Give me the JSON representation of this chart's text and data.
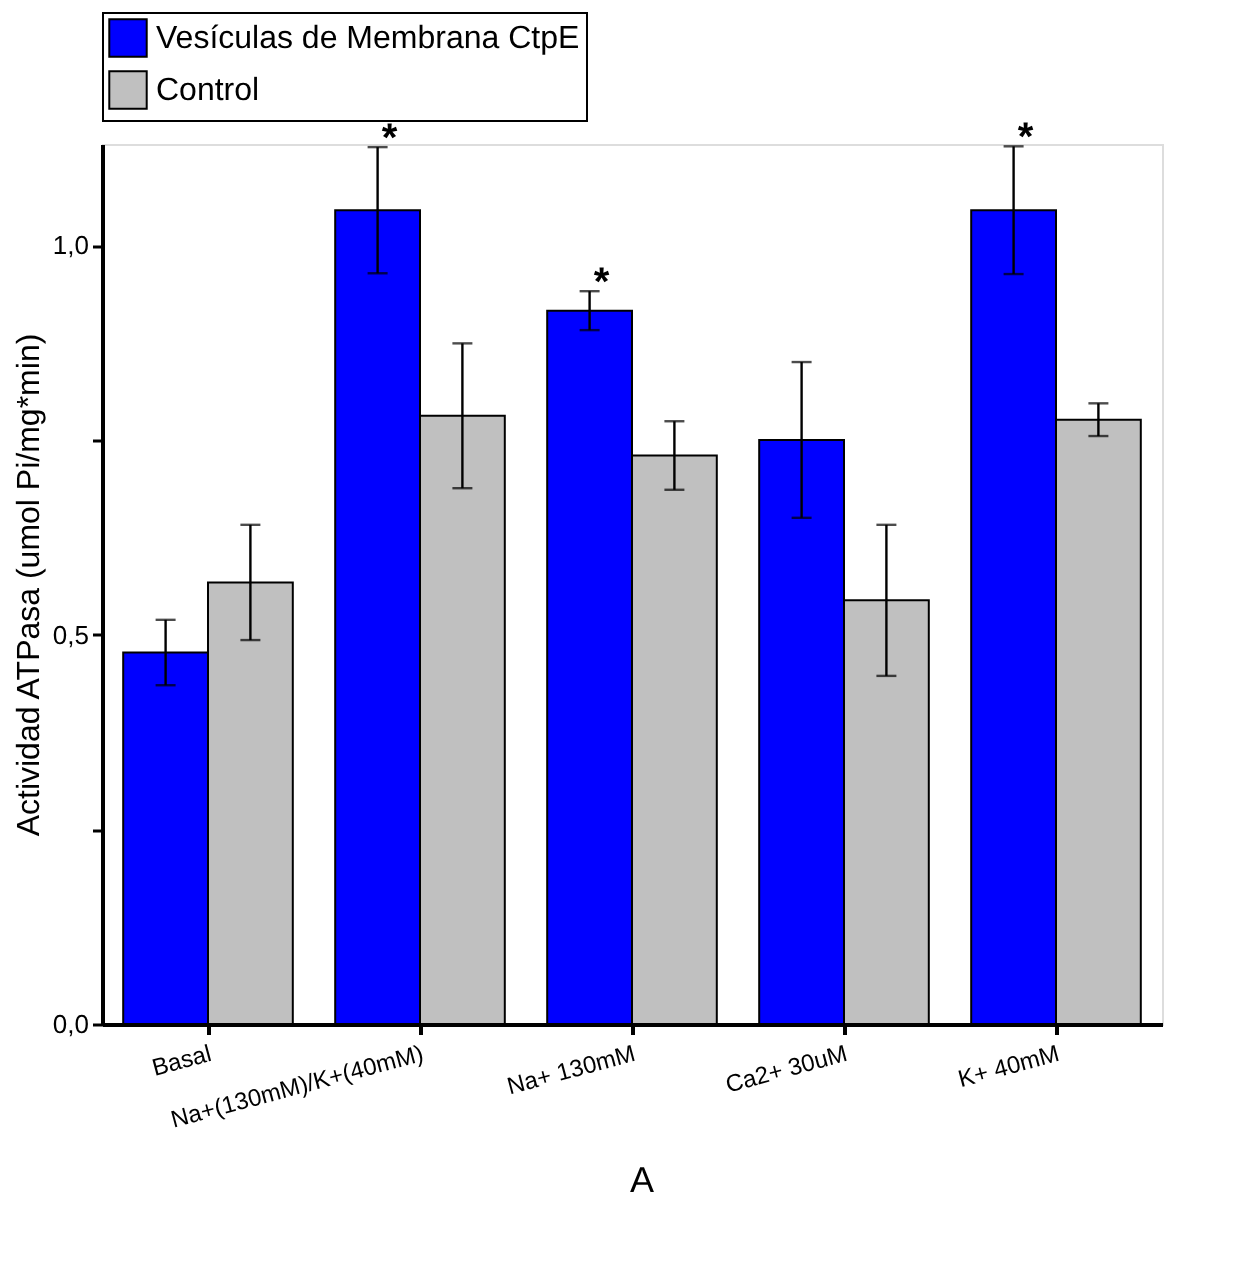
{
  "chart_data": {
    "type": "bar",
    "ylabel": "Actividad ATPasa (umol Pi/mg*min)",
    "categories": [
      "Basal",
      "Na+(130mM)/K+(40mM)",
      "Na+ 130mM",
      "Ca2+ 30uM",
      "K+ 40mM"
    ],
    "series": [
      {
        "name": "Vesículas de Membrana CtpE",
        "color": "#0000ff",
        "values": [
          0.477,
          1.045,
          0.916,
          0.75,
          1.045
        ],
        "errors": [
          0.042,
          0.081,
          0.025,
          0.1,
          0.082
        ]
      },
      {
        "name": "Control",
        "color": "#c0c0c0",
        "values": [
          0.567,
          0.781,
          0.73,
          0.544,
          0.776
        ],
        "errors": [
          0.074,
          0.093,
          0.044,
          0.097,
          0.021
        ]
      }
    ],
    "ylim": [
      0,
      1.13
    ],
    "yticks": [
      {
        "value": 0,
        "label": "0,0"
      },
      {
        "value": 0.25,
        "label": null
      },
      {
        "value": 0.5,
        "label": "0,5"
      },
      {
        "value": 0.75,
        "label": null
      },
      {
        "value": 1.0,
        "label": "1,0"
      }
    ],
    "legend": "top",
    "grid": false,
    "annotations": [
      {
        "text": "*",
        "x": "Na+(130mM)/K+(40mM)",
        "y": 1.045
      },
      {
        "text": "*",
        "x": "Na+ 130mM",
        "y": 0.916
      },
      {
        "text": "*",
        "x": "K+ 40mM",
        "y": 1.045
      },
      "A"
    ]
  }
}
